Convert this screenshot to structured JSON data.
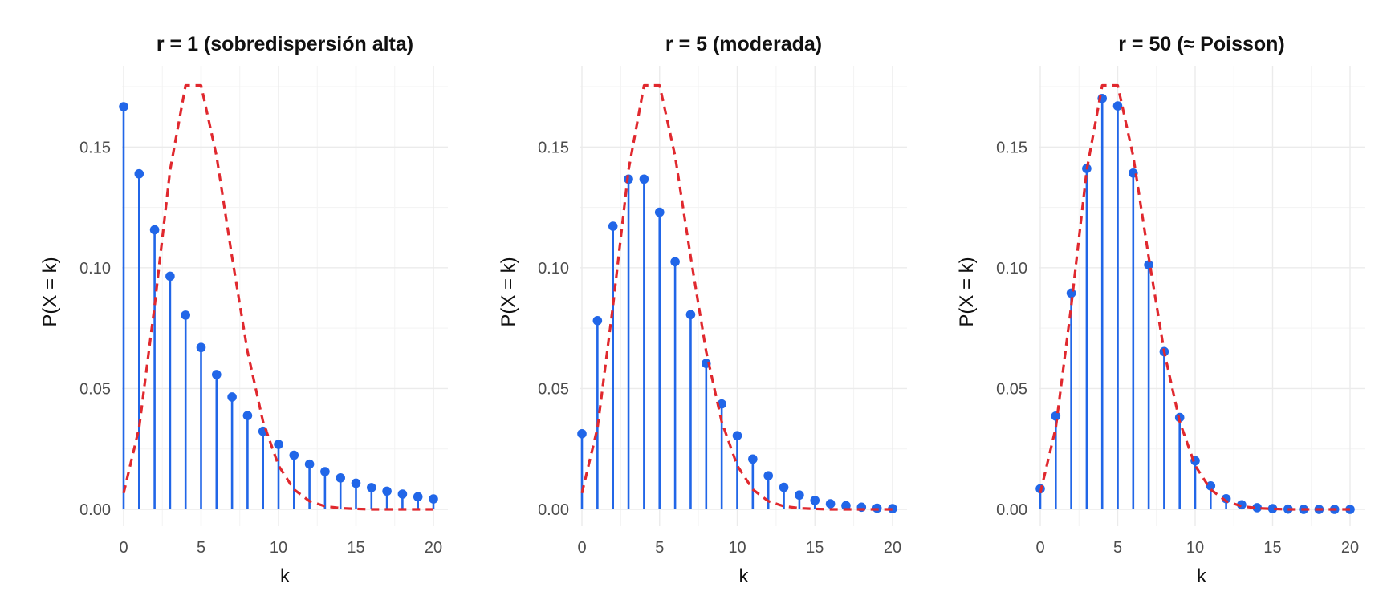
{
  "chart_data": [
    {
      "type": "lollipop",
      "title": "r = 1 (sobredispersión alta)",
      "xlabel": "k",
      "ylabel": "P(X = k)",
      "x": [
        0,
        1,
        2,
        3,
        4,
        5,
        6,
        7,
        8,
        9,
        10,
        11,
        12,
        13,
        14,
        15,
        16,
        17,
        18,
        19,
        20
      ],
      "xlim": [
        0,
        20
      ],
      "ylim": [
        0,
        0.175
      ],
      "xticks": [
        0,
        5,
        10,
        15,
        20
      ],
      "yticks": [
        0.0,
        0.05,
        0.1,
        0.15
      ],
      "ytick_labels": [
        "0.00",
        "0.05",
        "0.10",
        "0.15"
      ],
      "grid": true,
      "series": [
        {
          "values": [
            0.1667,
            0.1389,
            0.1157,
            0.0965,
            0.0804,
            0.067,
            0.0558,
            0.0465,
            0.0388,
            0.0323,
            0.0269,
            0.0224,
            0.0187,
            0.0156,
            0.013,
            0.0108,
            0.009,
            0.0075,
            0.0063,
            0.0052,
            0.0043
          ],
          "color": "#2166e8",
          "style": "stems+points"
        },
        {
          "values": [
            0.0067,
            0.0337,
            0.0842,
            0.1404,
            0.1755,
            0.1755,
            0.1462,
            0.1044,
            0.0653,
            0.0363,
            0.0181,
            0.0082,
            0.0034,
            0.0013,
            0.0005,
            0.0002,
            0.0,
            0.0,
            0.0,
            0.0,
            0.0
          ],
          "color": "#e0282e",
          "style": "dashed"
        }
      ]
    },
    {
      "type": "lollipop",
      "title": "r = 5 (moderada)",
      "xlabel": "k",
      "ylabel": "P(X = k)",
      "x": [
        0,
        1,
        2,
        3,
        4,
        5,
        6,
        7,
        8,
        9,
        10,
        11,
        12,
        13,
        14,
        15,
        16,
        17,
        18,
        19,
        20
      ],
      "xlim": [
        0,
        20
      ],
      "ylim": [
        0,
        0.175
      ],
      "xticks": [
        0,
        5,
        10,
        15,
        20
      ],
      "yticks": [
        0.0,
        0.05,
        0.1,
        0.15
      ],
      "ytick_labels": [
        "0.00",
        "0.05",
        "0.10",
        "0.15"
      ],
      "grid": true,
      "series": [
        {
          "values": [
            0.0313,
            0.0781,
            0.1172,
            0.1367,
            0.1367,
            0.123,
            0.1025,
            0.0806,
            0.0604,
            0.0436,
            0.0305,
            0.0208,
            0.0139,
            0.0091,
            0.0059,
            0.0037,
            0.0023,
            0.0015,
            0.0009,
            0.0005,
            0.0003
          ],
          "color": "#2166e8",
          "style": "stems+points"
        },
        {
          "values": [
            0.0067,
            0.0337,
            0.0842,
            0.1404,
            0.1755,
            0.1755,
            0.1462,
            0.1044,
            0.0653,
            0.0363,
            0.0181,
            0.0082,
            0.0034,
            0.0013,
            0.0005,
            0.0002,
            0.0,
            0.0,
            0.0,
            0.0,
            0.0
          ],
          "color": "#e0282e",
          "style": "dashed"
        }
      ]
    },
    {
      "type": "lollipop",
      "title": "r = 50 (≈ Poisson)",
      "xlabel": "k",
      "ylabel": "P(X = k)",
      "x": [
        0,
        1,
        2,
        3,
        4,
        5,
        6,
        7,
        8,
        9,
        10,
        11,
        12,
        13,
        14,
        15,
        16,
        17,
        18,
        19,
        20
      ],
      "xlim": [
        0,
        20
      ],
      "ylim": [
        0,
        0.175
      ],
      "xticks": [
        0,
        5,
        10,
        15,
        20
      ],
      "yticks": [
        0.0,
        0.05,
        0.1,
        0.15
      ],
      "ytick_labels": [
        "0.00",
        "0.05",
        "0.10",
        "0.15"
      ],
      "grid": true,
      "series": [
        {
          "values": [
            0.0085,
            0.0386,
            0.0895,
            0.1411,
            0.1701,
            0.167,
            0.1392,
            0.1012,
            0.0653,
            0.038,
            0.0201,
            0.0097,
            0.0044,
            0.0019,
            0.0007,
            0.0003,
            0.0001,
            0.0,
            0.0,
            0.0,
            0.0
          ],
          "color": "#2166e8",
          "style": "stems+points"
        },
        {
          "values": [
            0.0067,
            0.0337,
            0.0842,
            0.1404,
            0.1755,
            0.1755,
            0.1462,
            0.1044,
            0.0653,
            0.0363,
            0.0181,
            0.0082,
            0.0034,
            0.0013,
            0.0005,
            0.0002,
            0.0,
            0.0,
            0.0,
            0.0,
            0.0
          ],
          "color": "#e0282e",
          "style": "dashed"
        }
      ]
    }
  ]
}
